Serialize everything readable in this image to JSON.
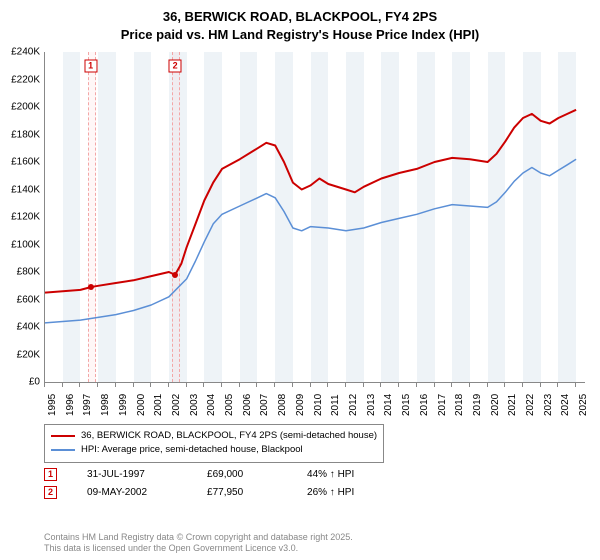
{
  "title_line1": "36, BERWICK ROAD, BLACKPOOL, FY4 2PS",
  "title_line2": "Price paid vs. HM Land Registry's House Price Index (HPI)",
  "chart": {
    "type": "line",
    "background_color": "#ffffff",
    "band_color": "#eef3f7",
    "grid_color": "#888888",
    "ylim": [
      0,
      240000
    ],
    "ytick_step": 20000,
    "y_labels": [
      "£0",
      "£20K",
      "£40K",
      "£60K",
      "£80K",
      "£100K",
      "£120K",
      "£140K",
      "£160K",
      "£180K",
      "£200K",
      "£220K",
      "£240K"
    ],
    "xlim": [
      1995,
      2025.5
    ],
    "x_ticks": [
      1995,
      1996,
      1997,
      1998,
      1999,
      2000,
      2001,
      2002,
      2003,
      2004,
      2005,
      2006,
      2007,
      2008,
      2009,
      2010,
      2011,
      2012,
      2013,
      2014,
      2015,
      2016,
      2017,
      2018,
      2019,
      2020,
      2021,
      2022,
      2023,
      2024,
      2025
    ],
    "series": [
      {
        "name": "price_paid",
        "label": "36, BERWICK ROAD, BLACKPOOL, FY4 2PS (semi-detached house)",
        "color": "#cc0000",
        "line_width": 2,
        "points": [
          [
            1995,
            65000
          ],
          [
            1996,
            66000
          ],
          [
            1997,
            67000
          ],
          [
            1997.58,
            69000
          ],
          [
            1998,
            70000
          ],
          [
            1999,
            72000
          ],
          [
            2000,
            74000
          ],
          [
            2001,
            77000
          ],
          [
            2002,
            80000
          ],
          [
            2002.35,
            77950
          ],
          [
            2002.7,
            86000
          ],
          [
            2003,
            98000
          ],
          [
            2003.5,
            115000
          ],
          [
            2004,
            132000
          ],
          [
            2004.5,
            145000
          ],
          [
            2005,
            155000
          ],
          [
            2006,
            162000
          ],
          [
            2007,
            170000
          ],
          [
            2007.5,
            174000
          ],
          [
            2008,
            172000
          ],
          [
            2008.5,
            160000
          ],
          [
            2009,
            145000
          ],
          [
            2009.5,
            140000
          ],
          [
            2010,
            143000
          ],
          [
            2010.5,
            148000
          ],
          [
            2011,
            144000
          ],
          [
            2012,
            140000
          ],
          [
            2012.5,
            138000
          ],
          [
            2013,
            142000
          ],
          [
            2014,
            148000
          ],
          [
            2015,
            152000
          ],
          [
            2016,
            155000
          ],
          [
            2017,
            160000
          ],
          [
            2018,
            163000
          ],
          [
            2019,
            162000
          ],
          [
            2020,
            160000
          ],
          [
            2020.5,
            166000
          ],
          [
            2021,
            175000
          ],
          [
            2021.5,
            185000
          ],
          [
            2022,
            192000
          ],
          [
            2022.5,
            195000
          ],
          [
            2023,
            190000
          ],
          [
            2023.5,
            188000
          ],
          [
            2024,
            192000
          ],
          [
            2024.5,
            195000
          ],
          [
            2025,
            198000
          ]
        ]
      },
      {
        "name": "hpi",
        "label": "HPI: Average price, semi-detached house, Blackpool",
        "color": "#5b8fd6",
        "line_width": 1.5,
        "points": [
          [
            1995,
            43000
          ],
          [
            1996,
            44000
          ],
          [
            1997,
            45000
          ],
          [
            1998,
            47000
          ],
          [
            1999,
            49000
          ],
          [
            2000,
            52000
          ],
          [
            2001,
            56000
          ],
          [
            2002,
            62000
          ],
          [
            2003,
            75000
          ],
          [
            2003.5,
            88000
          ],
          [
            2004,
            102000
          ],
          [
            2004.5,
            115000
          ],
          [
            2005,
            122000
          ],
          [
            2006,
            128000
          ],
          [
            2007,
            134000
          ],
          [
            2007.5,
            137000
          ],
          [
            2008,
            134000
          ],
          [
            2008.5,
            124000
          ],
          [
            2009,
            112000
          ],
          [
            2009.5,
            110000
          ],
          [
            2010,
            113000
          ],
          [
            2011,
            112000
          ],
          [
            2012,
            110000
          ],
          [
            2013,
            112000
          ],
          [
            2014,
            116000
          ],
          [
            2015,
            119000
          ],
          [
            2016,
            122000
          ],
          [
            2017,
            126000
          ],
          [
            2018,
            129000
          ],
          [
            2019,
            128000
          ],
          [
            2020,
            127000
          ],
          [
            2020.5,
            131000
          ],
          [
            2021,
            138000
          ],
          [
            2021.5,
            146000
          ],
          [
            2022,
            152000
          ],
          [
            2022.5,
            156000
          ],
          [
            2023,
            152000
          ],
          [
            2023.5,
            150000
          ],
          [
            2024,
            154000
          ],
          [
            2024.5,
            158000
          ],
          [
            2025,
            162000
          ]
        ]
      }
    ],
    "sale_markers": [
      {
        "n": "1",
        "x": 1997.58,
        "y": 69000
      },
      {
        "n": "2",
        "x": 2002.35,
        "y": 77950
      }
    ]
  },
  "legend": {
    "items": [
      {
        "color": "#cc0000",
        "label": "36, BERWICK ROAD, BLACKPOOL, FY4 2PS (semi-detached house)"
      },
      {
        "color": "#5b8fd6",
        "label": "HPI: Average price, semi-detached house, Blackpool"
      }
    ]
  },
  "sales": [
    {
      "n": "1",
      "date": "31-JUL-1997",
      "price": "£69,000",
      "delta": "44% ↑ HPI"
    },
    {
      "n": "2",
      "date": "09-MAY-2002",
      "price": "£77,950",
      "delta": "26% ↑ HPI"
    }
  ],
  "copyright_line1": "Contains HM Land Registry data © Crown copyright and database right 2025.",
  "copyright_line2": "This data is licensed under the Open Government Licence v3.0."
}
